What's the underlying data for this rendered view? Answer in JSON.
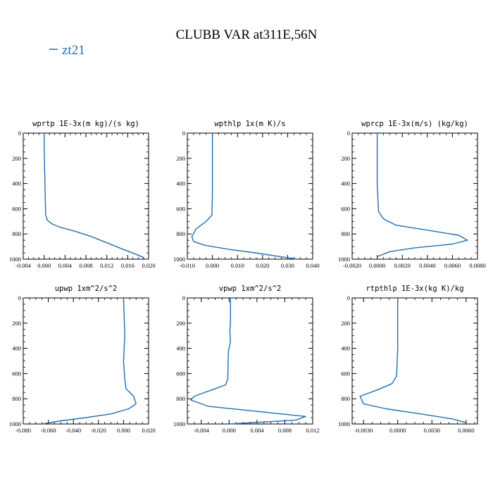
{
  "figure": {
    "title": "CLUBB VAR at311E,56N",
    "legend_label": "zt21",
    "line_color": "#1f6fb4"
  },
  "chart_data": [
    {
      "type": "line",
      "title": "wprtp  1E-3x(m kg)/(s kg)",
      "xlim": [
        -0.004,
        0.02
      ],
      "xticks": [
        -0.004,
        0.0,
        0.004,
        0.008,
        0.012,
        0.016,
        0.02
      ],
      "xtick_labels": [
        "-0.004",
        "0.000",
        "0.004",
        "0.008",
        "0.012",
        "0.016",
        "0.020"
      ],
      "ylim": [
        0,
        1000
      ],
      "yticks": [
        0,
        200,
        400,
        600,
        800,
        1000
      ],
      "ytick_labels": [
        "0",
        "200",
        "400",
        "600",
        "800",
        "1000"
      ],
      "series": [
        {
          "name": "zt21",
          "x": [
            0.0,
            0.0,
            0.0001,
            0.0002,
            0.0003,
            0.0006,
            0.0015,
            0.003,
            0.006,
            0.009,
            0.012,
            0.015,
            0.0175,
            0.0192
          ],
          "y": [
            0,
            100,
            300,
            500,
            650,
            690,
            720,
            745,
            780,
            820,
            870,
            920,
            960,
            990
          ]
        }
      ]
    },
    {
      "type": "line",
      "title": "wpthlp  1x(m K)/s",
      "xlim": [
        -0.01,
        0.04
      ],
      "xticks": [
        -0.01,
        0.0,
        0.01,
        0.02,
        0.03,
        0.04
      ],
      "xtick_labels": [
        "-0.010",
        "0.000",
        "0.010",
        "0.020",
        "0.030",
        "0.040"
      ],
      "ylim": [
        0,
        1000
      ],
      "yticks": [
        0,
        200,
        400,
        600,
        800,
        1000
      ],
      "ytick_labels": [
        "0",
        "200",
        "400",
        "600",
        "800",
        "1000"
      ],
      "series": [
        {
          "name": "zt21",
          "x": [
            0.0,
            0.0,
            0.0,
            -0.0002,
            -0.0025,
            -0.0065,
            -0.0082,
            -0.0075,
            -0.003,
            0.006,
            0.017,
            0.027,
            0.034
          ],
          "y": [
            0,
            200,
            500,
            650,
            700,
            760,
            820,
            860,
            890,
            920,
            950,
            980,
            1000
          ]
        }
      ]
    },
    {
      "type": "line",
      "title": "wprcp  1E-3x(m/s) (kg/kg)",
      "xlim": [
        -0.002,
        0.008
      ],
      "xticks": [
        -0.002,
        0.0,
        0.002,
        0.004,
        0.006,
        0.008
      ],
      "xtick_labels": [
        "-0.0020",
        "0.0000",
        "0.0020",
        "0.0040",
        "0.0060",
        "0.0080"
      ],
      "ylim": [
        0,
        1000
      ],
      "yticks": [
        0,
        200,
        400,
        600,
        800,
        1000
      ],
      "ytick_labels": [
        "0",
        "200",
        "400",
        "600",
        "800",
        "1000"
      ],
      "series": [
        {
          "name": "zt21",
          "x": [
            0.0,
            0.0,
            0.0001,
            0.0005,
            0.0015,
            0.004,
            0.0065,
            0.0072,
            0.006,
            0.003,
            0.001,
            0.0
          ],
          "y": [
            0,
            400,
            620,
            680,
            730,
            770,
            810,
            850,
            880,
            910,
            940,
            980
          ]
        }
      ]
    },
    {
      "type": "line",
      "title": "upwp  1xm^2/s^2",
      "xlim": [
        -0.08,
        0.02
      ],
      "xticks": [
        -0.08,
        -0.06,
        -0.04,
        -0.02,
        0.0,
        0.02
      ],
      "xtick_labels": [
        "-0.080",
        "-0.060",
        "-0.040",
        "-0.020",
        "0.000",
        "0.020"
      ],
      "ylim": [
        0,
        1000
      ],
      "yticks": [
        0,
        200,
        400,
        600,
        800,
        1000
      ],
      "ytick_labels": [
        "0",
        "200",
        "400",
        "600",
        "800",
        "1000"
      ],
      "series": [
        {
          "name": "zt21",
          "x": [
            0.0,
            0.001,
            0.0,
            0.001,
            0.002,
            0.008,
            0.01,
            0.004,
            -0.01,
            -0.03,
            -0.05,
            -0.065
          ],
          "y": [
            0,
            300,
            500,
            650,
            720,
            780,
            840,
            880,
            920,
            950,
            975,
            1000
          ]
        }
      ]
    },
    {
      "type": "line",
      "title": "vpwp  1xm^2/s^2",
      "xlim": [
        -0.006,
        0.012
      ],
      "xticks": [
        -0.004,
        0.0,
        0.004,
        0.008,
        0.012
      ],
      "xtick_labels": [
        "-0.004",
        "0.000",
        "0.004",
        "0.008",
        "0.012"
      ],
      "ylim": [
        0,
        1000
      ],
      "yticks": [
        0,
        200,
        400,
        600,
        800,
        1000
      ],
      "ytick_labels": [
        "0",
        "200",
        "400",
        "600",
        "800",
        "1000"
      ],
      "series": [
        {
          "name": "zt21",
          "x": [
            0.0002,
            0.0002,
            0.0001,
            0.0002,
            -0.0001,
            -0.0002,
            -0.0005,
            -0.0025,
            -0.005,
            -0.0055,
            -0.003,
            0.004,
            0.011,
            0.0095,
            0.0
          ],
          "y": [
            0,
            200,
            260,
            350,
            420,
            640,
            690,
            730,
            780,
            810,
            860,
            900,
            940,
            970,
            1000
          ]
        }
      ]
    },
    {
      "type": "line",
      "title": "rtpthlp  1E-3x(kg K)/kg",
      "xlim": [
        -0.004,
        0.007
      ],
      "xticks": [
        -0.003,
        0.0,
        0.003,
        0.006
      ],
      "xtick_labels": [
        "-0.0030",
        "0.0000",
        "0.0030",
        "0.0060"
      ],
      "ylim": [
        0,
        1000
      ],
      "yticks": [
        0,
        200,
        400,
        600,
        800,
        1000
      ],
      "ytick_labels": [
        "0",
        "200",
        "400",
        "600",
        "800",
        "1000"
      ],
      "series": [
        {
          "name": "zt21",
          "x": [
            0.0,
            0.0,
            -0.0001,
            -0.0005,
            -0.0018,
            -0.0033,
            -0.003,
            -0.001,
            0.002,
            0.0048,
            0.006
          ],
          "y": [
            0,
            400,
            620,
            680,
            730,
            780,
            840,
            880,
            920,
            960,
            990
          ]
        }
      ]
    }
  ]
}
